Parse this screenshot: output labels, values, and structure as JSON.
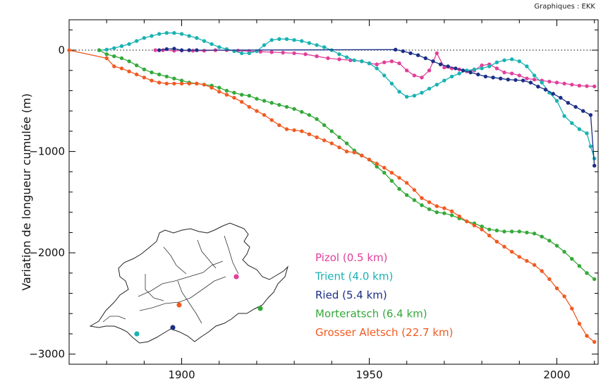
{
  "credit": "Graphiques : EKK",
  "chart_data": {
    "type": "line",
    "ylabel": "Variation de longueur cumulée (m)",
    "xlabel": "",
    "xlim": [
      1870,
      2011
    ],
    "ylim": [
      -3100,
      300
    ],
    "x_ticks": [
      1900,
      1950,
      2000
    ],
    "y_ticks": [
      0,
      -1000,
      -2000,
      -3000
    ],
    "y_tick_labels": [
      "0",
      "−1000",
      "−2000",
      "−3000"
    ],
    "zero_line": "dotted",
    "legend_position": "inside-lower-middle",
    "series": [
      {
        "name": "Pizol (0.5 km)",
        "color": "#e0409b",
        "points": [
          [
            1893,
            0
          ],
          [
            1895,
            0
          ],
          [
            1898,
            -5
          ],
          [
            1900,
            -3
          ],
          [
            1903,
            -5
          ],
          [
            1906,
            -5
          ],
          [
            1909,
            0
          ],
          [
            1912,
            0
          ],
          [
            1915,
            -5
          ],
          [
            1918,
            -10
          ],
          [
            1921,
            -15
          ],
          [
            1924,
            -20
          ],
          [
            1927,
            -25
          ],
          [
            1930,
            -30
          ],
          [
            1933,
            -40
          ],
          [
            1936,
            -60
          ],
          [
            1939,
            -80
          ],
          [
            1942,
            -90
          ],
          [
            1945,
            -100
          ],
          [
            1948,
            -110
          ],
          [
            1950,
            -130
          ],
          [
            1952,
            -140
          ],
          [
            1954,
            -120
          ],
          [
            1956,
            -110
          ],
          [
            1958,
            -130
          ],
          [
            1960,
            -200
          ],
          [
            1962,
            -250
          ],
          [
            1964,
            -270
          ],
          [
            1966,
            -200
          ],
          [
            1968,
            -30
          ],
          [
            1970,
            -170
          ],
          [
            1972,
            -180
          ],
          [
            1974,
            -190
          ],
          [
            1976,
            -210
          ],
          [
            1978,
            -200
          ],
          [
            1980,
            -150
          ],
          [
            1982,
            -140
          ],
          [
            1984,
            -180
          ],
          [
            1986,
            -220
          ],
          [
            1988,
            -230
          ],
          [
            1990,
            -250
          ],
          [
            1992,
            -280
          ],
          [
            1994,
            -290
          ],
          [
            1996,
            -300
          ],
          [
            1998,
            -310
          ],
          [
            2000,
            -320
          ],
          [
            2002,
            -330
          ],
          [
            2004,
            -340
          ],
          [
            2006,
            -350
          ],
          [
            2008,
            -355
          ],
          [
            2010,
            -358
          ]
        ]
      },
      {
        "name": "Trient (4.0 km)",
        "color": "#1ab2b2",
        "points": [
          [
            1878,
            0
          ],
          [
            1880,
            5
          ],
          [
            1882,
            20
          ],
          [
            1884,
            40
          ],
          [
            1886,
            60
          ],
          [
            1888,
            90
          ],
          [
            1890,
            120
          ],
          [
            1892,
            140
          ],
          [
            1894,
            160
          ],
          [
            1896,
            170
          ],
          [
            1898,
            170
          ],
          [
            1900,
            160
          ],
          [
            1902,
            140
          ],
          [
            1904,
            120
          ],
          [
            1906,
            90
          ],
          [
            1908,
            60
          ],
          [
            1910,
            30
          ],
          [
            1912,
            10
          ],
          [
            1914,
            -10
          ],
          [
            1916,
            -30
          ],
          [
            1918,
            -30
          ],
          [
            1920,
            -10
          ],
          [
            1922,
            50
          ],
          [
            1924,
            100
          ],
          [
            1926,
            110
          ],
          [
            1928,
            110
          ],
          [
            1930,
            100
          ],
          [
            1932,
            90
          ],
          [
            1934,
            70
          ],
          [
            1936,
            50
          ],
          [
            1938,
            30
          ],
          [
            1940,
            0
          ],
          [
            1942,
            -40
          ],
          [
            1944,
            -70
          ],
          [
            1946,
            -100
          ],
          [
            1948,
            -110
          ],
          [
            1950,
            -130
          ],
          [
            1952,
            -180
          ],
          [
            1954,
            -250
          ],
          [
            1956,
            -330
          ],
          [
            1958,
            -410
          ],
          [
            1960,
            -460
          ],
          [
            1962,
            -450
          ],
          [
            1964,
            -420
          ],
          [
            1966,
            -380
          ],
          [
            1968,
            -340
          ],
          [
            1970,
            -300
          ],
          [
            1972,
            -260
          ],
          [
            1974,
            -230
          ],
          [
            1976,
            -200
          ],
          [
            1978,
            -190
          ],
          [
            1980,
            -180
          ],
          [
            1982,
            -160
          ],
          [
            1984,
            -120
          ],
          [
            1986,
            -100
          ],
          [
            1988,
            -90
          ],
          [
            1990,
            -110
          ],
          [
            1992,
            -160
          ],
          [
            1994,
            -250
          ],
          [
            1996,
            -320
          ],
          [
            1998,
            -420
          ],
          [
            2000,
            -500
          ],
          [
            2002,
            -650
          ],
          [
            2004,
            -720
          ],
          [
            2006,
            -780
          ],
          [
            2008,
            -820
          ],
          [
            2009,
            -950
          ],
          [
            2010,
            -1070
          ]
        ]
      },
      {
        "name": "Ried (5.4 km)",
        "color": "#1b2f86",
        "points": [
          [
            1894,
            0
          ],
          [
            1896,
            10
          ],
          [
            1898,
            15
          ],
          [
            1900,
            0
          ],
          [
            1902,
            0
          ],
          [
            1904,
            0
          ],
          [
            1957,
            5
          ],
          [
            1959,
            -10
          ],
          [
            1961,
            -30
          ],
          [
            1963,
            -50
          ],
          [
            1965,
            -80
          ],
          [
            1967,
            -110
          ],
          [
            1969,
            -140
          ],
          [
            1971,
            -160
          ],
          [
            1973,
            -180
          ],
          [
            1975,
            -200
          ],
          [
            1977,
            -220
          ],
          [
            1979,
            -240
          ],
          [
            1981,
            -260
          ],
          [
            1983,
            -270
          ],
          [
            1985,
            -280
          ],
          [
            1987,
            -290
          ],
          [
            1989,
            -295
          ],
          [
            1991,
            -300
          ],
          [
            1993,
            -320
          ],
          [
            1995,
            -360
          ],
          [
            1997,
            -390
          ],
          [
            1999,
            -430
          ],
          [
            2001,
            -470
          ],
          [
            2003,
            -520
          ],
          [
            2005,
            -560
          ],
          [
            2007,
            -600
          ],
          [
            2009,
            -640
          ],
          [
            2010,
            -1140
          ]
        ]
      },
      {
        "name": "Morteratsch (6.4 km)",
        "color": "#34a93a",
        "points": [
          [
            1878,
            0
          ],
          [
            1880,
            -40
          ],
          [
            1882,
            -60
          ],
          [
            1884,
            -80
          ],
          [
            1886,
            -110
          ],
          [
            1888,
            -150
          ],
          [
            1890,
            -190
          ],
          [
            1892,
            -220
          ],
          [
            1894,
            -240
          ],
          [
            1896,
            -260
          ],
          [
            1898,
            -280
          ],
          [
            1900,
            -300
          ],
          [
            1902,
            -320
          ],
          [
            1904,
            -330
          ],
          [
            1906,
            -340
          ],
          [
            1908,
            -350
          ],
          [
            1910,
            -370
          ],
          [
            1912,
            -400
          ],
          [
            1914,
            -420
          ],
          [
            1916,
            -440
          ],
          [
            1918,
            -450
          ],
          [
            1920,
            -480
          ],
          [
            1922,
            -500
          ],
          [
            1924,
            -520
          ],
          [
            1926,
            -540
          ],
          [
            1928,
            -560
          ],
          [
            1930,
            -580
          ],
          [
            1932,
            -610
          ],
          [
            1934,
            -640
          ],
          [
            1936,
            -680
          ],
          [
            1938,
            -740
          ],
          [
            1940,
            -800
          ],
          [
            1942,
            -860
          ],
          [
            1944,
            -920
          ],
          [
            1946,
            -990
          ],
          [
            1948,
            -1040
          ],
          [
            1950,
            -1080
          ],
          [
            1952,
            -1150
          ],
          [
            1954,
            -1210
          ],
          [
            1956,
            -1290
          ],
          [
            1958,
            -1370
          ],
          [
            1960,
            -1430
          ],
          [
            1962,
            -1480
          ],
          [
            1964,
            -1530
          ],
          [
            1966,
            -1570
          ],
          [
            1968,
            -1600
          ],
          [
            1970,
            -1610
          ],
          [
            1972,
            -1630
          ],
          [
            1974,
            -1660
          ],
          [
            1976,
            -1690
          ],
          [
            1978,
            -1710
          ],
          [
            1980,
            -1740
          ],
          [
            1982,
            -1770
          ],
          [
            1984,
            -1780
          ],
          [
            1986,
            -1790
          ],
          [
            1988,
            -1790
          ],
          [
            1990,
            -1790
          ],
          [
            1992,
            -1800
          ],
          [
            1994,
            -1810
          ],
          [
            1996,
            -1840
          ],
          [
            1998,
            -1880
          ],
          [
            2000,
            -1930
          ],
          [
            2002,
            -1990
          ],
          [
            2004,
            -2060
          ],
          [
            2006,
            -2130
          ],
          [
            2008,
            -2200
          ],
          [
            2010,
            -2260
          ]
        ]
      },
      {
        "name": "Grosser Aletsch (22.7 km)",
        "color": "#f15a22",
        "points": [
          [
            1870,
            0
          ],
          [
            1880,
            -80
          ],
          [
            1882,
            -160
          ],
          [
            1884,
            -180
          ],
          [
            1886,
            -210
          ],
          [
            1888,
            -240
          ],
          [
            1890,
            -270
          ],
          [
            1892,
            -300
          ],
          [
            1894,
            -320
          ],
          [
            1896,
            -330
          ],
          [
            1898,
            -330
          ],
          [
            1900,
            -330
          ],
          [
            1902,
            -330
          ],
          [
            1904,
            -330
          ],
          [
            1906,
            -340
          ],
          [
            1908,
            -370
          ],
          [
            1910,
            -410
          ],
          [
            1912,
            -440
          ],
          [
            1914,
            -470
          ],
          [
            1916,
            -510
          ],
          [
            1918,
            -560
          ],
          [
            1920,
            -600
          ],
          [
            1922,
            -640
          ],
          [
            1924,
            -690
          ],
          [
            1926,
            -740
          ],
          [
            1928,
            -780
          ],
          [
            1930,
            -790
          ],
          [
            1932,
            -800
          ],
          [
            1934,
            -830
          ],
          [
            1936,
            -860
          ],
          [
            1938,
            -890
          ],
          [
            1940,
            -920
          ],
          [
            1942,
            -960
          ],
          [
            1944,
            -1000
          ],
          [
            1946,
            -1010
          ],
          [
            1948,
            -1040
          ],
          [
            1950,
            -1080
          ],
          [
            1952,
            -1120
          ],
          [
            1954,
            -1160
          ],
          [
            1956,
            -1210
          ],
          [
            1958,
            -1260
          ],
          [
            1960,
            -1310
          ],
          [
            1962,
            -1380
          ],
          [
            1964,
            -1460
          ],
          [
            1966,
            -1500
          ],
          [
            1968,
            -1540
          ],
          [
            1970,
            -1560
          ],
          [
            1972,
            -1590
          ],
          [
            1974,
            -1640
          ],
          [
            1976,
            -1690
          ],
          [
            1978,
            -1730
          ],
          [
            1980,
            -1770
          ],
          [
            1982,
            -1830
          ],
          [
            1984,
            -1890
          ],
          [
            1986,
            -1940
          ],
          [
            1988,
            -1990
          ],
          [
            1990,
            -2040
          ],
          [
            1992,
            -2080
          ],
          [
            1994,
            -2120
          ],
          [
            1996,
            -2180
          ],
          [
            1998,
            -2260
          ],
          [
            2000,
            -2350
          ],
          [
            2002,
            -2430
          ],
          [
            2004,
            -2550
          ],
          [
            2006,
            -2700
          ],
          [
            2008,
            -2820
          ],
          [
            2010,
            -2880
          ]
        ]
      }
    ]
  }
}
